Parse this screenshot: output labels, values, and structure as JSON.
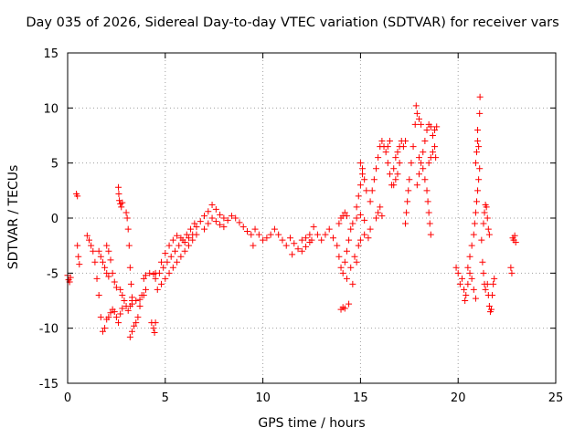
{
  "chart_data": {
    "type": "scatter",
    "title": "Day 035 of 2026, Sidereal Day-to-day VTEC variation (SDTVAR) for receiver vars",
    "xlabel": "GPS time / hours",
    "ylabel": "SDTVAR / TECUs",
    "xlim": [
      0,
      25
    ],
    "ylim": [
      -15,
      15
    ],
    "xticks": [
      "0",
      "5",
      "10",
      "15",
      "20",
      "25"
    ],
    "yticks": [
      "-15",
      "-10",
      "-5",
      "0",
      "5",
      "10",
      "15"
    ],
    "grid": true,
    "marker": "+",
    "color": "#ff0000",
    "series": [
      {
        "name": "vars",
        "points": [
          [
            0.0,
            -5.2
          ],
          [
            0.05,
            -5.6
          ],
          [
            0.1,
            -5.8
          ],
          [
            0.15,
            -5.4
          ],
          [
            0.45,
            2.2
          ],
          [
            0.5,
            2.0
          ],
          [
            0.5,
            -2.5
          ],
          [
            0.55,
            -3.5
          ],
          [
            0.6,
            -4.2
          ],
          [
            1.0,
            -1.6
          ],
          [
            1.1,
            -2.0
          ],
          [
            1.2,
            -2.5
          ],
          [
            1.3,
            -3.0
          ],
          [
            1.4,
            -4.0
          ],
          [
            1.5,
            -5.5
          ],
          [
            1.6,
            -7.0
          ],
          [
            1.7,
            -9.0
          ],
          [
            1.8,
            -10.3
          ],
          [
            1.9,
            -10.0
          ],
          [
            2.0,
            -9.2
          ],
          [
            1.6,
            -3.0
          ],
          [
            1.7,
            -3.5
          ],
          [
            1.8,
            -4.0
          ],
          [
            1.9,
            -4.5
          ],
          [
            2.0,
            -5.0
          ],
          [
            2.1,
            -5.3
          ],
          [
            2.0,
            -2.5
          ],
          [
            2.1,
            -3.0
          ],
          [
            2.2,
            -3.8
          ],
          [
            2.3,
            -5.0
          ],
          [
            2.4,
            -5.8
          ],
          [
            2.5,
            -6.3
          ],
          [
            2.1,
            -9.0
          ],
          [
            2.2,
            -8.6
          ],
          [
            2.3,
            -8.3
          ],
          [
            2.4,
            -8.5
          ],
          [
            2.5,
            -9.0
          ],
          [
            2.6,
            -9.5
          ],
          [
            2.7,
            -8.7
          ],
          [
            2.8,
            -8.2
          ],
          [
            2.6,
            2.8
          ],
          [
            2.62,
            2.2
          ],
          [
            2.65,
            1.6
          ],
          [
            2.7,
            1.3
          ],
          [
            2.75,
            1.0
          ],
          [
            2.8,
            1.4
          ],
          [
            2.7,
            -6.5
          ],
          [
            2.8,
            -7.0
          ],
          [
            2.9,
            -7.5
          ],
          [
            3.0,
            -8.0
          ],
          [
            3.1,
            -8.4
          ],
          [
            3.2,
            -8.0
          ],
          [
            3.3,
            -7.8
          ],
          [
            3.0,
            0.5
          ],
          [
            3.05,
            0.0
          ],
          [
            3.1,
            -1.0
          ],
          [
            3.15,
            -2.5
          ],
          [
            3.2,
            -4.5
          ],
          [
            3.25,
            -6.0
          ],
          [
            3.3,
            -7.5
          ],
          [
            3.2,
            -10.8
          ],
          [
            3.3,
            -10.3
          ],
          [
            3.4,
            -9.8
          ],
          [
            3.5,
            -9.5
          ],
          [
            3.6,
            -9.0
          ],
          [
            3.7,
            -8.0
          ],
          [
            3.8,
            -7.0
          ],
          [
            3.3,
            -7.2
          ],
          [
            3.5,
            -7.5
          ],
          [
            3.7,
            -7.4
          ],
          [
            3.9,
            -7.0
          ],
          [
            4.0,
            -6.5
          ],
          [
            3.9,
            -5.5
          ],
          [
            4.0,
            -5.2
          ],
          [
            4.2,
            -5.0
          ],
          [
            4.4,
            -5.1
          ],
          [
            4.5,
            -5.0
          ],
          [
            4.3,
            -9.5
          ],
          [
            4.4,
            -10.0
          ],
          [
            4.45,
            -10.4
          ],
          [
            4.5,
            -9.5
          ],
          [
            4.5,
            -5.5
          ],
          [
            4.7,
            -5.0
          ],
          [
            4.9,
            -4.5
          ],
          [
            5.1,
            -4.0
          ],
          [
            5.3,
            -3.5
          ],
          [
            5.5,
            -3.0
          ],
          [
            5.7,
            -2.5
          ],
          [
            5.9,
            -2.0
          ],
          [
            6.1,
            -1.5
          ],
          [
            6.3,
            -1.0
          ],
          [
            6.5,
            -0.5
          ],
          [
            4.6,
            -6.5
          ],
          [
            4.8,
            -6.0
          ],
          [
            5.0,
            -5.5
          ],
          [
            5.2,
            -5.0
          ],
          [
            5.4,
            -4.5
          ],
          [
            5.6,
            -4.0
          ],
          [
            5.8,
            -3.5
          ],
          [
            6.0,
            -3.0
          ],
          [
            6.2,
            -2.5
          ],
          [
            6.4,
            -2.0
          ],
          [
            6.6,
            -1.5
          ],
          [
            4.8,
            -4.0
          ],
          [
            5.0,
            -3.2
          ],
          [
            5.2,
            -2.5
          ],
          [
            5.4,
            -2.0
          ],
          [
            5.6,
            -1.6
          ],
          [
            5.8,
            -1.8
          ],
          [
            6.0,
            -2.2
          ],
          [
            6.2,
            -1.8
          ],
          [
            6.4,
            -1.5
          ],
          [
            6.6,
            -0.8
          ],
          [
            6.8,
            -0.3
          ],
          [
            7.0,
            0.2
          ],
          [
            7.2,
            0.6
          ],
          [
            7.4,
            1.2
          ],
          [
            7.6,
            0.8
          ],
          [
            7.8,
            0.3
          ],
          [
            8.0,
            0.0
          ],
          [
            8.2,
            -0.2
          ],
          [
            8.4,
            0.2
          ],
          [
            8.6,
            0.0
          ],
          [
            8.8,
            -0.4
          ],
          [
            7.0,
            -1.0
          ],
          [
            7.2,
            -0.5
          ],
          [
            7.4,
            0.0
          ],
          [
            7.6,
            -0.3
          ],
          [
            7.8,
            -0.6
          ],
          [
            8.0,
            -0.8
          ],
          [
            9.0,
            -0.8
          ],
          [
            9.2,
            -1.2
          ],
          [
            9.4,
            -1.5
          ],
          [
            9.5,
            -2.5
          ],
          [
            9.6,
            -1.0
          ],
          [
            9.8,
            -1.5
          ],
          [
            10.0,
            -2.0
          ],
          [
            10.2,
            -1.8
          ],
          [
            10.4,
            -1.5
          ],
          [
            10.6,
            -1.0
          ],
          [
            10.8,
            -1.5
          ],
          [
            11.0,
            -2.0
          ],
          [
            11.2,
            -2.5
          ],
          [
            11.4,
            -1.8
          ],
          [
            11.5,
            -3.3
          ],
          [
            11.6,
            -2.3
          ],
          [
            11.8,
            -2.8
          ],
          [
            12.0,
            -2.0
          ],
          [
            12.2,
            -1.8
          ],
          [
            12.4,
            -1.5
          ],
          [
            12.5,
            -2.0
          ],
          [
            12.6,
            -0.8
          ],
          [
            12.8,
            -1.5
          ],
          [
            13.0,
            -2.0
          ],
          [
            12.0,
            -3.0
          ],
          [
            12.2,
            -2.6
          ],
          [
            12.4,
            -2.2
          ],
          [
            13.2,
            -1.5
          ],
          [
            13.4,
            -1.0
          ],
          [
            13.6,
            -1.8
          ],
          [
            13.8,
            -2.5
          ],
          [
            13.9,
            -3.5
          ],
          [
            14.0,
            -4.5
          ],
          [
            14.1,
            -5.0
          ],
          [
            14.2,
            -4.0
          ],
          [
            14.3,
            -3.0
          ],
          [
            14.4,
            -2.0
          ],
          [
            14.5,
            -1.0
          ],
          [
            14.6,
            -0.5
          ],
          [
            14.8,
            0.0
          ],
          [
            15.0,
            0.3
          ],
          [
            15.2,
            -0.2
          ],
          [
            13.9,
            -0.5
          ],
          [
            14.0,
            0.0
          ],
          [
            14.1,
            0.2
          ],
          [
            14.2,
            0.5
          ],
          [
            14.3,
            0.2
          ],
          [
            14.0,
            -8.3
          ],
          [
            14.1,
            -8.1
          ],
          [
            14.2,
            -8.2
          ],
          [
            14.4,
            -7.8
          ],
          [
            14.6,
            -6.0
          ],
          [
            14.8,
            -4.0
          ],
          [
            15.0,
            -2.0
          ],
          [
            15.2,
            -1.5
          ],
          [
            15.4,
            -1.8
          ],
          [
            15.5,
            -1.0
          ],
          [
            14.3,
            -5.5
          ],
          [
            14.5,
            -4.5
          ],
          [
            14.7,
            -3.5
          ],
          [
            14.9,
            -2.5
          ],
          [
            14.8,
            1.0
          ],
          [
            14.9,
            2.0
          ],
          [
            15.0,
            3.0
          ],
          [
            15.1,
            4.0
          ],
          [
            15.2,
            3.5
          ],
          [
            15.3,
            2.5
          ],
          [
            15.0,
            5.0
          ],
          [
            15.1,
            4.5
          ],
          [
            15.5,
            1.5
          ],
          [
            15.6,
            2.5
          ],
          [
            15.7,
            3.5
          ],
          [
            15.8,
            4.5
          ],
          [
            15.9,
            5.5
          ],
          [
            16.0,
            6.5
          ],
          [
            16.1,
            7.0
          ],
          [
            16.2,
            6.5
          ],
          [
            16.3,
            6.0
          ],
          [
            16.4,
            6.5
          ],
          [
            16.5,
            7.0
          ],
          [
            15.8,
            0.0
          ],
          [
            15.9,
            0.5
          ],
          [
            16.0,
            1.0
          ],
          [
            16.1,
            0.2
          ],
          [
            16.4,
            5.0
          ],
          [
            16.5,
            4.0
          ],
          [
            16.6,
            3.0
          ],
          [
            16.7,
            4.5
          ],
          [
            16.8,
            5.5
          ],
          [
            16.9,
            6.0
          ],
          [
            17.0,
            6.5
          ],
          [
            17.1,
            7.0
          ],
          [
            17.2,
            6.5
          ],
          [
            17.3,
            7.0
          ],
          [
            16.7,
            3.0
          ],
          [
            16.8,
            3.5
          ],
          [
            16.9,
            4.0
          ],
          [
            17.0,
            5.0
          ],
          [
            17.3,
            -0.5
          ],
          [
            17.35,
            0.5
          ],
          [
            17.4,
            1.5
          ],
          [
            17.45,
            2.5
          ],
          [
            17.5,
            3.5
          ],
          [
            17.6,
            5.0
          ],
          [
            17.7,
            6.5
          ],
          [
            17.8,
            8.5
          ],
          [
            17.85,
            10.2
          ],
          [
            17.9,
            9.5
          ],
          [
            18.0,
            9.0
          ],
          [
            18.1,
            8.5
          ],
          [
            17.9,
            3.0
          ],
          [
            18.0,
            4.0
          ],
          [
            18.1,
            5.0
          ],
          [
            18.2,
            6.0
          ],
          [
            18.3,
            7.0
          ],
          [
            18.4,
            8.0
          ],
          [
            18.5,
            8.5
          ],
          [
            18.6,
            8.3
          ],
          [
            18.7,
            7.5
          ],
          [
            18.8,
            8.0
          ],
          [
            18.9,
            8.3
          ],
          [
            18.0,
            5.5
          ],
          [
            18.2,
            4.5
          ],
          [
            18.3,
            3.5
          ],
          [
            18.4,
            2.5
          ],
          [
            18.45,
            1.5
          ],
          [
            18.5,
            0.5
          ],
          [
            18.55,
            -0.5
          ],
          [
            18.6,
            -1.5
          ],
          [
            18.5,
            5.0
          ],
          [
            18.6,
            5.5
          ],
          [
            18.7,
            6.0
          ],
          [
            18.8,
            6.5
          ],
          [
            18.85,
            5.5
          ],
          [
            19.9,
            -4.5
          ],
          [
            20.0,
            -5.0
          ],
          [
            20.1,
            -6.0
          ],
          [
            20.2,
            -5.5
          ],
          [
            20.3,
            -6.5
          ],
          [
            20.35,
            -7.5
          ],
          [
            20.4,
            -7.0
          ],
          [
            20.5,
            -6.0
          ],
          [
            20.6,
            -5.0
          ],
          [
            20.7,
            -5.5
          ],
          [
            20.8,
            -6.5
          ],
          [
            20.9,
            -7.3
          ],
          [
            20.5,
            -4.5
          ],
          [
            20.6,
            -3.5
          ],
          [
            20.7,
            -2.5
          ],
          [
            20.8,
            -1.5
          ],
          [
            20.85,
            -0.5
          ],
          [
            20.9,
            0.5
          ],
          [
            20.95,
            1.5
          ],
          [
            21.0,
            2.5
          ],
          [
            21.05,
            3.5
          ],
          [
            21.1,
            4.5
          ],
          [
            20.9,
            5.0
          ],
          [
            20.95,
            6.0
          ],
          [
            21.0,
            7.0
          ],
          [
            21.05,
            6.5
          ],
          [
            21.0,
            8.0
          ],
          [
            21.1,
            9.5
          ],
          [
            21.12,
            11.0
          ],
          [
            21.2,
            -2.0
          ],
          [
            21.25,
            -4.0
          ],
          [
            21.3,
            -5.0
          ],
          [
            21.35,
            -6.0
          ],
          [
            21.4,
            -6.5
          ],
          [
            21.3,
            -0.5
          ],
          [
            21.35,
            0.5
          ],
          [
            21.4,
            1.2
          ],
          [
            21.45,
            1.0
          ],
          [
            21.5,
            0.0
          ],
          [
            21.55,
            -1.0
          ],
          [
            21.6,
            -1.5
          ],
          [
            21.5,
            -6.0
          ],
          [
            21.55,
            -7.0
          ],
          [
            21.6,
            -8.0
          ],
          [
            21.65,
            -8.5
          ],
          [
            21.7,
            -8.3
          ],
          [
            21.75,
            -7.0
          ],
          [
            21.8,
            -6.0
          ],
          [
            21.85,
            -5.5
          ],
          [
            22.7,
            -4.5
          ],
          [
            22.75,
            -5.0
          ],
          [
            22.8,
            -1.8
          ],
          [
            22.85,
            -2.0
          ],
          [
            22.9,
            -1.6
          ],
          [
            22.95,
            -2.2
          ]
        ]
      }
    ]
  }
}
